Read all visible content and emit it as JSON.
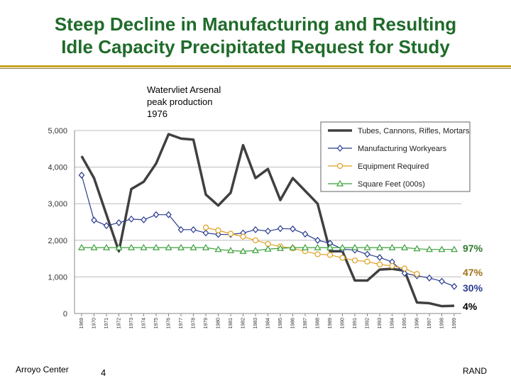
{
  "title_line1": "Steep Decline in Manufacturing and Resulting",
  "title_line2": "Idle Capacity Precipitated Request for Study",
  "annotation": "Watervliet Arsenal\npeak production\n1976",
  "footer": {
    "left": "Arroyo Center",
    "page": "4",
    "right": "RAND"
  },
  "chart_data": {
    "type": "line",
    "x": [
      1969,
      1970,
      1971,
      1972,
      1973,
      1974,
      1975,
      1976,
      1977,
      1978,
      1979,
      1980,
      1981,
      1982,
      1983,
      1984,
      1985,
      1986,
      1987,
      1988,
      1989,
      1990,
      1991,
      1992,
      1993,
      1994,
      1995,
      1996,
      1997,
      1998,
      1999
    ],
    "ylim": [
      0,
      5000
    ],
    "yticks": [
      0,
      1000,
      2000,
      3000,
      4000,
      5000
    ],
    "ytick_labels": [
      "0",
      "1,000",
      "2,000",
      "3,000",
      "4,000",
      "5,000"
    ],
    "legend_position": "top-right",
    "series": [
      {
        "name": "Tubes, Cannons, Rifles, Mortars",
        "color": "#404040",
        "marker": "none",
        "values": [
          4300,
          3700,
          2700,
          1700,
          3400,
          3600,
          4100,
          4900,
          4780,
          4750,
          3250,
          2950,
          3300,
          4600,
          3700,
          3950,
          3100,
          3700,
          3350,
          3000,
          1700,
          1700,
          900,
          900,
          1200,
          1220,
          1170,
          300,
          280,
          200,
          210
        ]
      },
      {
        "name": "Manufacturing Workyears",
        "color": "#2a3c8f",
        "marker": "diamond",
        "values": [
          3780,
          2550,
          2400,
          2480,
          2580,
          2560,
          2700,
          2700,
          2290,
          2290,
          2200,
          2160,
          2160,
          2200,
          2290,
          2250,
          2320,
          2310,
          2170,
          2000,
          1920,
          1760,
          1730,
          1620,
          1530,
          1410,
          1100,
          1030,
          970,
          880,
          740
        ]
      },
      {
        "name": "Equipment Required",
        "color": "#e0a020",
        "marker": "circle",
        "values": [
          null,
          null,
          null,
          null,
          null,
          null,
          null,
          null,
          null,
          null,
          2350,
          2270,
          2180,
          2100,
          2000,
          1900,
          1830,
          1780,
          1700,
          1620,
          1600,
          1520,
          1450,
          1420,
          1340,
          1300,
          1230,
          1080,
          null,
          null,
          null
        ]
      },
      {
        "name": "Square Feet (000s)",
        "color": "#3aa03a",
        "marker": "triangle",
        "values": [
          1800,
          1800,
          1800,
          1800,
          1800,
          1800,
          1800,
          1800,
          1800,
          1800,
          1800,
          1750,
          1720,
          1700,
          1720,
          1760,
          1780,
          1800,
          1800,
          1800,
          1800,
          1800,
          1800,
          1800,
          1800,
          1800,
          1800,
          1770,
          1750,
          1750,
          1750
        ]
      }
    ],
    "end_labels": [
      {
        "text": "97%",
        "color": "#2f7a2f"
      },
      {
        "text": "47%",
        "color": "#a0721a"
      },
      {
        "text": "30%",
        "color": "#2a3c8f"
      },
      {
        "text": "4%",
        "color": "#000000"
      }
    ]
  }
}
